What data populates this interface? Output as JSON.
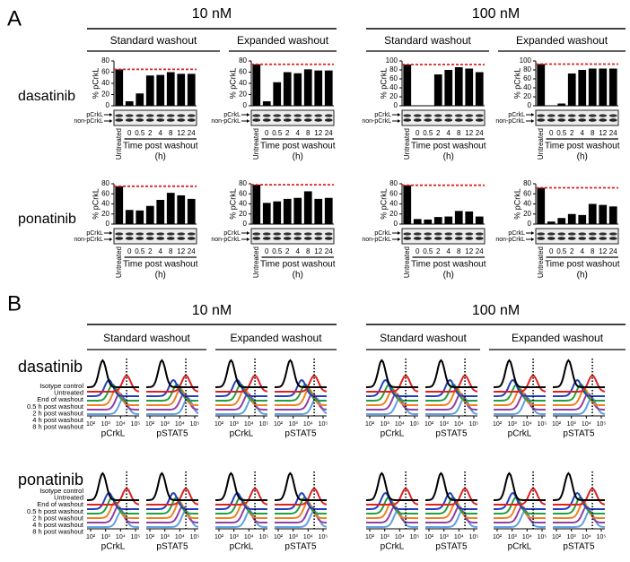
{
  "panel_a": {
    "label": "A",
    "concentrations": [
      "10 nM",
      "100 nM"
    ],
    "washouts": [
      "Standard washout",
      "Expanded washout"
    ],
    "drugs": [
      "dasatinib",
      "ponatinib"
    ],
    "blot_labels": [
      "pCrkL",
      "non-pCrkL"
    ],
    "x_axis_label": "Time post washout",
    "x_axis_unit": "(h)"
  },
  "chart_data": [
    {
      "type": "bar",
      "ylabel": "% pCrkL",
      "categories": [
        "Untreated",
        "0",
        "0.5",
        "2",
        "4",
        "8",
        "12",
        "24"
      ],
      "values": [
        65,
        8,
        22,
        54,
        55,
        60,
        57,
        57
      ],
      "reference": 65,
      "color": "#000000",
      "reference_color": "#e02020",
      "ylim": [
        0,
        80
      ],
      "yticks": [
        0,
        20,
        40,
        60,
        80
      ]
    },
    {
      "type": "bar",
      "ylabel": "% pCrkL",
      "categories": [
        "Untreated",
        "0",
        "0.5",
        "2",
        "4",
        "8",
        "12",
        "24"
      ],
      "values": [
        74,
        8,
        42,
        60,
        58,
        65,
        63,
        63
      ],
      "reference": 74,
      "color": "#000000",
      "reference_color": "#e02020",
      "ylim": [
        0,
        80
      ],
      "yticks": [
        0,
        20,
        40,
        60,
        80
      ]
    },
    {
      "type": "bar",
      "ylabel": "% pCrkL",
      "categories": [
        "Untreated",
        "0",
        "0.5",
        "2",
        "4",
        "8",
        "12",
        "24"
      ],
      "values": [
        92,
        1,
        1,
        70,
        80,
        86,
        83,
        75
      ],
      "reference": 92,
      "color": "#000000",
      "reference_color": "#e02020",
      "ylim": [
        0,
        100
      ],
      "yticks": [
        0,
        20,
        40,
        60,
        80,
        100
      ]
    },
    {
      "type": "bar",
      "ylabel": "% pCrkL",
      "categories": [
        "Untreated",
        "0",
        "0.5",
        "2",
        "4",
        "8",
        "12",
        "24"
      ],
      "values": [
        93,
        1,
        5,
        72,
        80,
        83,
        83,
        83
      ],
      "reference": 93,
      "color": "#000000",
      "reference_color": "#e02020",
      "ylim": [
        0,
        100
      ],
      "yticks": [
        0,
        20,
        40,
        60,
        80,
        100
      ]
    },
    {
      "type": "bar",
      "ylabel": "% pCrkL",
      "categories": [
        "Untreated",
        "0",
        "0.5",
        "2",
        "4",
        "8",
        "12",
        "24"
      ],
      "values": [
        75,
        28,
        27,
        36,
        48,
        62,
        57,
        50
      ],
      "reference": 75,
      "color": "#000000",
      "reference_color": "#e02020",
      "ylim": [
        0,
        80
      ],
      "yticks": [
        0,
        20,
        40,
        60,
        80
      ]
    },
    {
      "type": "bar",
      "ylabel": "% pCrkL",
      "categories": [
        "Untreated",
        "0",
        "0.5",
        "2",
        "4",
        "8",
        "12",
        "24"
      ],
      "values": [
        78,
        42,
        45,
        50,
        52,
        65,
        50,
        52
      ],
      "reference": 78,
      "color": "#000000",
      "reference_color": "#e02020",
      "ylim": [
        0,
        80
      ],
      "yticks": [
        0,
        20,
        40,
        60,
        80
      ]
    },
    {
      "type": "bar",
      "ylabel": "% pCrkL",
      "categories": [
        "Untreated",
        "0",
        "0.5",
        "2",
        "4",
        "8",
        "12",
        "24"
      ],
      "values": [
        77,
        10,
        9,
        14,
        15,
        26,
        25,
        15
      ],
      "reference": 77,
      "color": "#000000",
      "reference_color": "#e02020",
      "ylim": [
        0,
        80
      ],
      "yticks": [
        0,
        20,
        40,
        60,
        80
      ]
    },
    {
      "type": "bar",
      "ylabel": "% pCrkL",
      "categories": [
        "Untreated",
        "0",
        "0.5",
        "2",
        "4",
        "8",
        "12",
        "24"
      ],
      "values": [
        72,
        5,
        12,
        20,
        18,
        40,
        38,
        35
      ],
      "reference": 72,
      "color": "#000000",
      "reference_color": "#e02020",
      "ylim": [
        0,
        80
      ],
      "yticks": [
        0,
        20,
        40,
        60,
        80
      ]
    }
  ],
  "panel_b": {
    "label": "B",
    "concentrations": [
      "10 nM",
      "100 nM"
    ],
    "washouts": [
      "Standard washout",
      "Expanded washout"
    ],
    "drugs": [
      "dasatinib",
      "ponatinib"
    ],
    "markers": [
      "pCrkL",
      "pSTAT5"
    ],
    "x_tick_labels": [
      "10²",
      "10³",
      "10⁴",
      "10⁵"
    ],
    "conditions": [
      {
        "name": "Isotype control",
        "color": "#000000"
      },
      {
        "name": "Untreated",
        "color": "#e02020"
      },
      {
        "name": "End of washout",
        "color": "#2040c0"
      },
      {
        "name": "0.5 h post washout",
        "color": "#20a040"
      },
      {
        "name": "2 h post washout",
        "color": "#f08020"
      },
      {
        "name": "4 h post washout",
        "color": "#9040a0"
      },
      {
        "name": "8 h post washout",
        "color": "#60a0e0"
      }
    ]
  }
}
